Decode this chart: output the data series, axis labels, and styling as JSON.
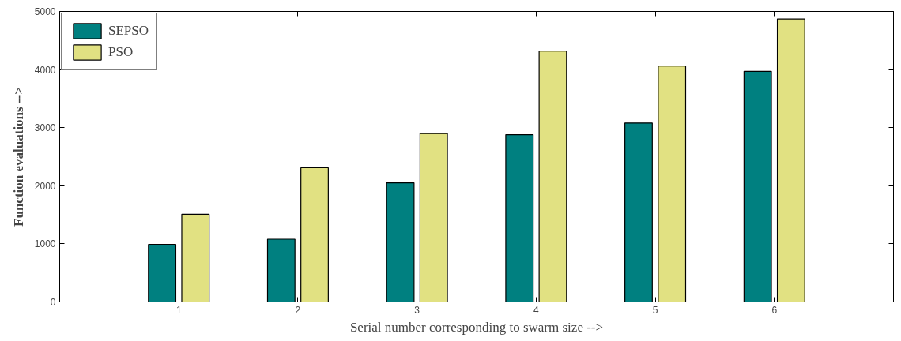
{
  "chart_data": {
    "type": "bar",
    "xlabel": "Serial number corresponding to swarm size -->",
    "ylabel": "Function evaluations -->",
    "x": [
      1,
      2,
      3,
      4,
      5,
      6
    ],
    "series": [
      {
        "name": "SEPSO",
        "color": "#008080",
        "values": [
          990,
          1080,
          2050,
          2880,
          3080,
          3970
        ]
      },
      {
        "name": "PSO",
        "color": "#e1e182",
        "values": [
          1510,
          2310,
          2900,
          4320,
          4060,
          4870
        ]
      }
    ],
    "xlim": [
      0,
      7
    ],
    "xticks": [
      1,
      2,
      3,
      4,
      5,
      6
    ],
    "ylim": [
      0,
      5000
    ],
    "yticks": [
      0,
      1000,
      2000,
      3000,
      4000,
      5000
    ],
    "grid": false,
    "legend": "top left"
  }
}
